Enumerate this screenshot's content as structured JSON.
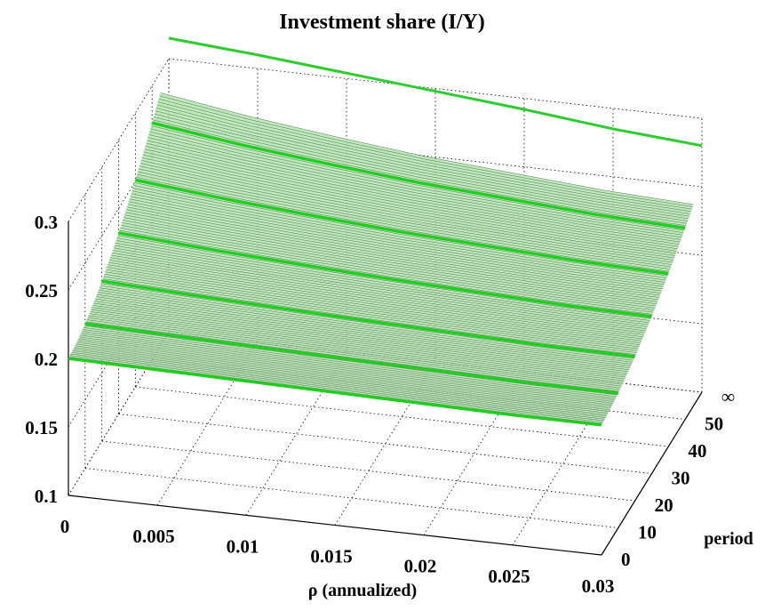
{
  "chart_data": {
    "type": "surface3d",
    "title": "Investment share (I/Y)",
    "xlabel": "ρ (annualized)",
    "ylabel": "period",
    "zlabel": "",
    "x_ticks": [
      "0",
      "0.005",
      "0.01",
      "0.015",
      "0.02",
      "0.025",
      "0.03"
    ],
    "y_ticks": [
      "0",
      "10",
      "20",
      "30",
      "40",
      "50",
      "∞"
    ],
    "z_ticks": [
      "0.1",
      "0.15",
      "0.2",
      "0.25",
      "0.3"
    ],
    "xlim": [
      0,
      0.03
    ],
    "ylim": [
      0,
      60
    ],
    "zlim": [
      0.1,
      0.3
    ],
    "grid": true,
    "surface": {
      "rho": [
        0,
        0.005,
        0.01,
        0.015,
        0.02,
        0.025,
        0.03
      ],
      "period_range": [
        0,
        55
      ],
      "values_at_period_55": [
        0.285,
        0.275,
        0.267,
        0.26,
        0.255,
        0.25,
        0.247
      ],
      "values_at_period_0": [
        0.2,
        0.199,
        0.198,
        0.197,
        0.196,
        0.195,
        0.195
      ],
      "color": "#b4e6b0",
      "highlight_periods": [
        0,
        10,
        20,
        30,
        40,
        50
      ],
      "highlight_color": "#22cc22"
    },
    "steady_state_line": {
      "label": "∞",
      "rho": [
        0,
        0.005,
        0.01,
        0.015,
        0.02,
        0.025,
        0.03
      ],
      "values": [
        0.315,
        0.31,
        0.304,
        0.298,
        0.292,
        0.285,
        0.28
      ],
      "color": "#2ecc2e"
    }
  }
}
